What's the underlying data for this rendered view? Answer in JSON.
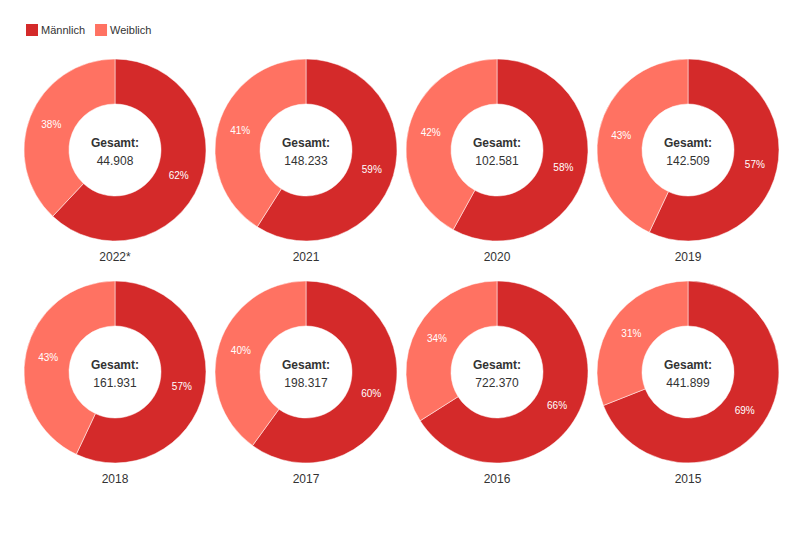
{
  "chart_data": [
    {
      "type": "pie",
      "title": "2022*",
      "categories": [
        "Männlich",
        "Weiblich"
      ],
      "values": [
        62,
        38
      ],
      "value_labels": [
        "62%",
        "38%"
      ],
      "colors": [
        "#d42a2a",
        "#ff7262"
      ],
      "data_labels": true,
      "legend": "top-left",
      "total_title": "Gesamt:",
      "total": {
        "value": 44908,
        "label": "44.908"
      }
    },
    {
      "type": "pie",
      "title": "2021",
      "categories": [
        "Männlich",
        "Weiblich"
      ],
      "values": [
        59,
        41
      ],
      "value_labels": [
        "59%",
        "41%"
      ],
      "colors": [
        "#d42a2a",
        "#ff7262"
      ],
      "data_labels": true,
      "total_title": "Gesamt:",
      "total": {
        "value": 148233,
        "label": "148.233"
      }
    },
    {
      "type": "pie",
      "title": "2020",
      "categories": [
        "Männlich",
        "Weiblich"
      ],
      "values": [
        58,
        42
      ],
      "value_labels": [
        "58%",
        "42%"
      ],
      "colors": [
        "#d42a2a",
        "#ff7262"
      ],
      "data_labels": true,
      "total_title": "Gesamt:",
      "total": {
        "value": 102581,
        "label": "102.581"
      }
    },
    {
      "type": "pie",
      "title": "2019",
      "categories": [
        "Männlich",
        "Weiblich"
      ],
      "values": [
        57,
        43
      ],
      "value_labels": [
        "57%",
        "43%"
      ],
      "colors": [
        "#d42a2a",
        "#ff7262"
      ],
      "data_labels": true,
      "total_title": "Gesamt:",
      "total": {
        "value": 142509,
        "label": "142.509"
      }
    },
    {
      "type": "pie",
      "title": "2018",
      "categories": [
        "Männlich",
        "Weiblich"
      ],
      "values": [
        57,
        43
      ],
      "value_labels": [
        "57%",
        "43%"
      ],
      "colors": [
        "#d42a2a",
        "#ff7262"
      ],
      "data_labels": true,
      "total_title": "Gesamt:",
      "total": {
        "value": 161931,
        "label": "161.931"
      }
    },
    {
      "type": "pie",
      "title": "2017",
      "categories": [
        "Männlich",
        "Weiblich"
      ],
      "values": [
        60,
        40
      ],
      "value_labels": [
        "60%",
        "40%"
      ],
      "colors": [
        "#d42a2a",
        "#ff7262"
      ],
      "data_labels": true,
      "total_title": "Gesamt:",
      "total": {
        "value": 198317,
        "label": "198.317"
      }
    },
    {
      "type": "pie",
      "title": "2016",
      "categories": [
        "Männlich",
        "Weiblich"
      ],
      "values": [
        66,
        34
      ],
      "value_labels": [
        "66%",
        "34%"
      ],
      "colors": [
        "#d42a2a",
        "#ff7262"
      ],
      "data_labels": true,
      "total_title": "Gesamt:",
      "total": {
        "value": 722370,
        "label": "722.370"
      }
    },
    {
      "type": "pie",
      "title": "2015",
      "categories": [
        "Männlich",
        "Weiblich"
      ],
      "values": [
        69,
        31
      ],
      "value_labels": [
        "69%",
        "31%"
      ],
      "colors": [
        "#d42a2a",
        "#ff7262"
      ],
      "data_labels": true,
      "total_title": "Gesamt:",
      "total": {
        "value": 441899,
        "label": "441.899"
      }
    }
  ]
}
